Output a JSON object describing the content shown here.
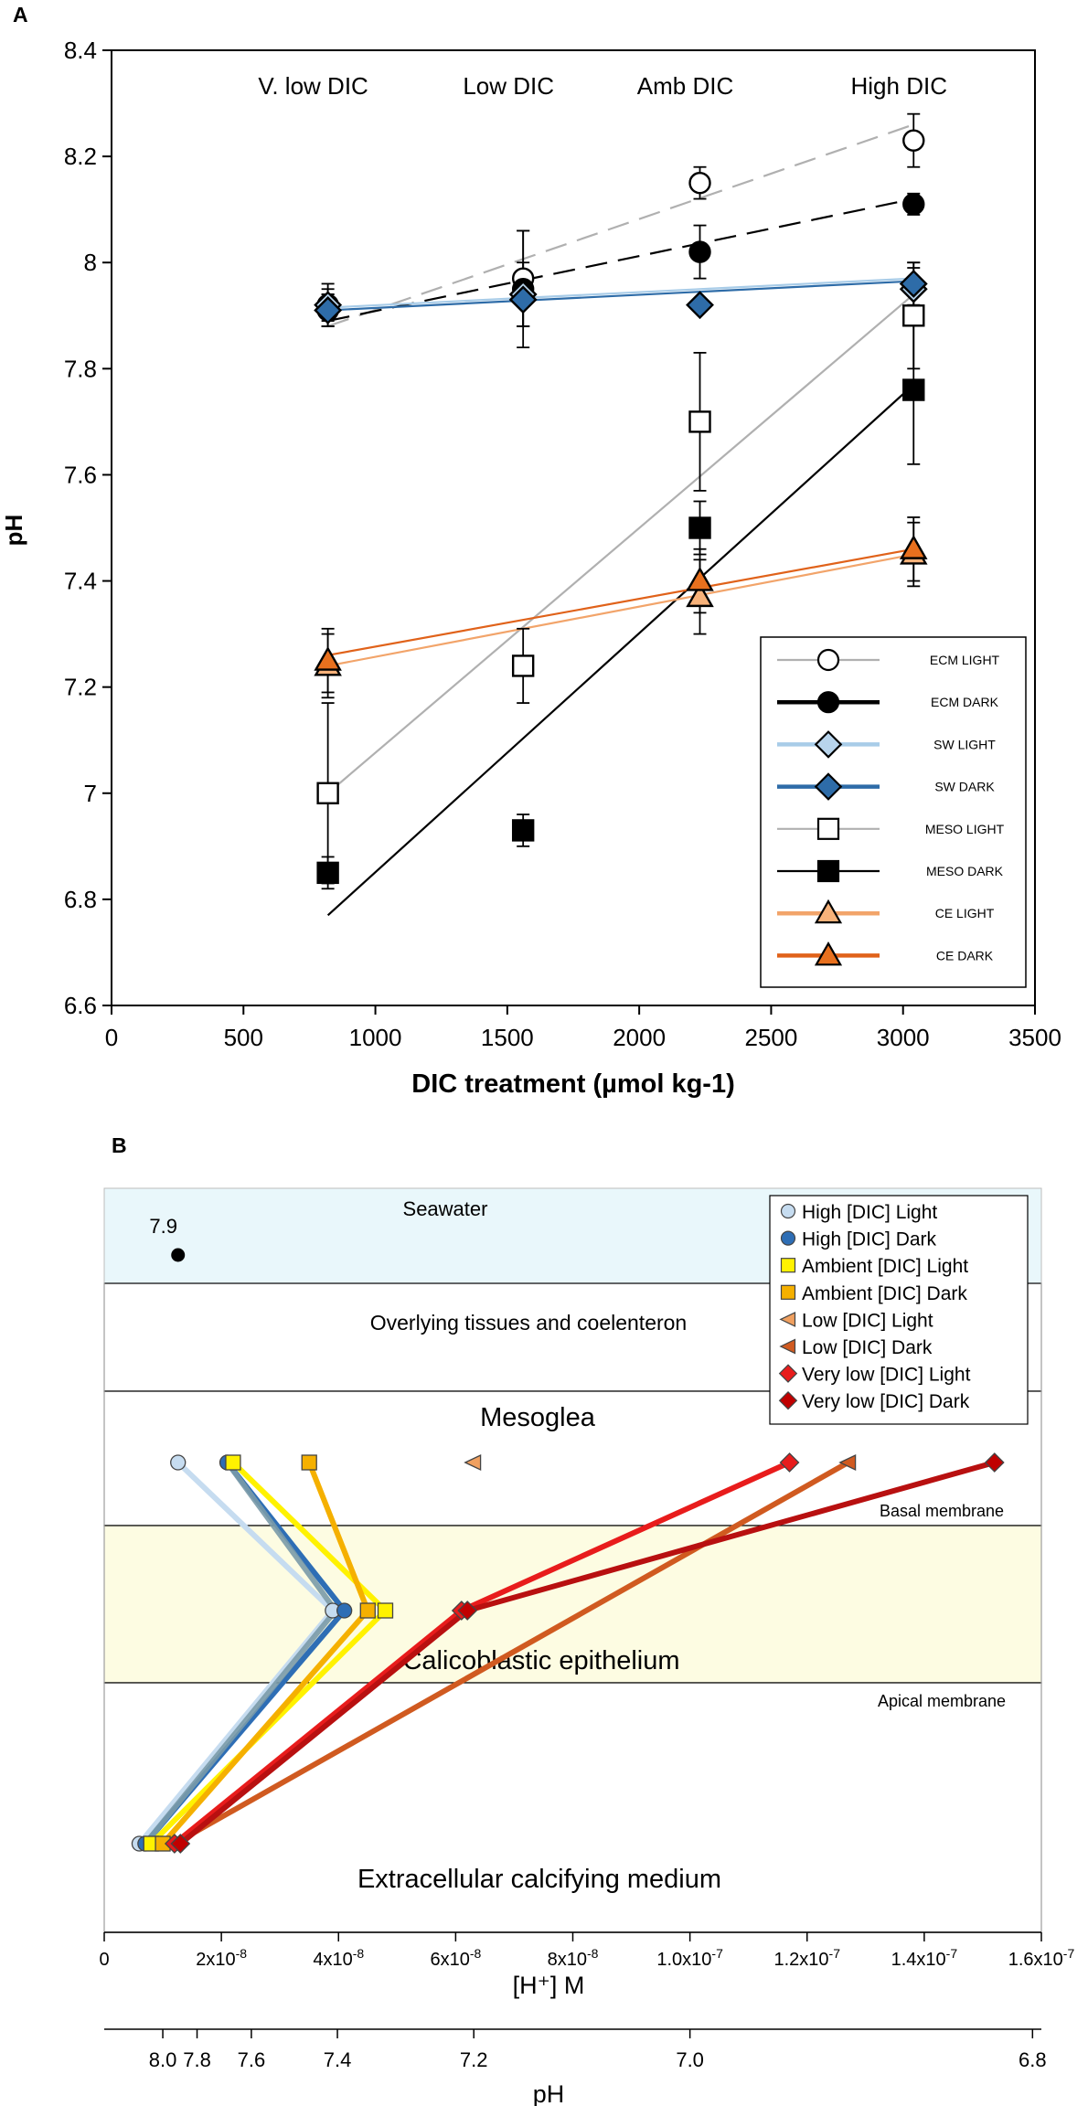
{
  "chart_data": [
    {
      "panel": "A",
      "type": "scatter",
      "xlabel": "DIC treatment (µmol kg-1)",
      "ylabel": "pH",
      "xlim": [
        0,
        3500
      ],
      "ylim": [
        6.6,
        8.4
      ],
      "xticks": [
        0,
        500,
        1000,
        1500,
        2000,
        2500,
        3000,
        3500
      ],
      "yticks": [
        6.6,
        6.8,
        7,
        7.2,
        7.4,
        7.6,
        7.8,
        8,
        8.2,
        8.4
      ],
      "ytick_labels": [
        "6.6",
        "6.8",
        "7",
        "7.2",
        "7.4",
        "7.6",
        "7.8",
        "8",
        "8.2",
        "8.4"
      ],
      "categories": [
        "V. low DIC",
        "Low DIC",
        "Amb DIC",
        "High DIC"
      ],
      "category_x": [
        820,
        1560,
        2230,
        3040
      ],
      "series": [
        {
          "name": "ECM LIGHT",
          "marker": "circle",
          "fill": "#ffffff",
          "stroke": "#000000",
          "line": "#b0b0b0",
          "dash": true,
          "x": [
            820,
            1560,
            2230,
            3040
          ],
          "y": [
            7.91,
            7.97,
            8.15,
            8.23
          ],
          "err": [
            0.03,
            0.09,
            0.03,
            0.05
          ],
          "fit": [
            [
              820,
              7.88
            ],
            [
              3040,
              8.26
            ]
          ]
        },
        {
          "name": "ECM DARK",
          "marker": "circle",
          "fill": "#000000",
          "stroke": "#000000",
          "line": "#000000",
          "dash": true,
          "x": [
            820,
            1560,
            2230,
            3040
          ],
          "y": [
            7.92,
            7.95,
            8.02,
            8.11
          ],
          "err": [
            0.04,
            0.11,
            0.05,
            0.02
          ],
          "fit": [
            [
              820,
              7.89
            ],
            [
              3040,
              8.12
            ]
          ]
        },
        {
          "name": "SW LIGHT",
          "marker": "diamond",
          "fill": "#b8d4ec",
          "stroke": "#000000",
          "line": "#a8cce8",
          "dash": false,
          "x": [
            820,
            1560,
            3040
          ],
          "y": [
            7.92,
            7.94,
            7.95
          ],
          "err": [
            0.03,
            0.06,
            0.04
          ],
          "fit": [
            [
              820,
              7.915
            ],
            [
              3040,
              7.97
            ]
          ]
        },
        {
          "name": "SW DARK",
          "marker": "diamond",
          "fill": "#2e6ca8",
          "stroke": "#000000",
          "line": "#2e6ca8",
          "dash": false,
          "x": [
            820,
            1560,
            2230,
            3040
          ],
          "y": [
            7.91,
            7.93,
            7.92,
            7.96
          ],
          "err": [
            0.03,
            0.05,
            0.01,
            0.04
          ],
          "fit": [
            [
              820,
              7.91
            ],
            [
              3040,
              7.965
            ]
          ]
        },
        {
          "name": "MESO LIGHT",
          "marker": "square",
          "fill": "#ffffff",
          "stroke": "#000000",
          "line": "#b0b0b0",
          "dash": false,
          "x": [
            820,
            1560,
            2230,
            3040
          ],
          "y": [
            7.0,
            7.24,
            7.7,
            7.9
          ],
          "err": [
            0.17,
            0.07,
            0.13,
            0.1
          ],
          "fit": [
            [
              820,
              7.0
            ],
            [
              3040,
              7.94
            ]
          ]
        },
        {
          "name": "MESO DARK",
          "marker": "square",
          "fill": "#000000",
          "stroke": "#000000",
          "line": "#000000",
          "dash": false,
          "x": [
            820,
            1560,
            2230,
            3040
          ],
          "y": [
            6.85,
            6.93,
            7.5,
            7.76
          ],
          "err": [
            0.03,
            0.03,
            0.05,
            0.14
          ],
          "fit": [
            [
              820,
              6.77
            ],
            [
              3040,
              7.77
            ]
          ]
        },
        {
          "name": "CE LIGHT",
          "marker": "triangle",
          "fill": "#f7b27a",
          "stroke": "#000000",
          "line": "#f2a46a",
          "dash": false,
          "x": [
            820,
            2230,
            3040
          ],
          "y": [
            7.24,
            7.37,
            7.45
          ],
          "err": [
            0.06,
            0.07,
            0.06
          ],
          "fit": [
            [
              820,
              7.24
            ],
            [
              3040,
              7.45
            ]
          ]
        },
        {
          "name": "CE DARK",
          "marker": "triangle",
          "fill": "#e8701e",
          "stroke": "#000000",
          "line": "#e0621a",
          "dash": false,
          "x": [
            820,
            2230,
            3040
          ],
          "y": [
            7.25,
            7.4,
            7.46
          ],
          "err": [
            0.06,
            0.06,
            0.06
          ],
          "fit": [
            [
              820,
              7.26
            ],
            [
              3040,
              7.46
            ]
          ]
        }
      ]
    },
    {
      "panel": "B",
      "type": "line",
      "xlabel": "[H⁺] M",
      "secondary_xlabel": "pH",
      "xlim": [
        0,
        1.6e-07
      ],
      "xticks": [
        0,
        2e-08,
        4e-08,
        6e-08,
        8e-08,
        1e-07,
        1.2e-07,
        1.4e-07,
        1.6e-07
      ],
      "xtick_labels": [
        {
          "mant": "0",
          "exp": ""
        },
        {
          "mant": "2x10",
          "exp": "-8"
        },
        {
          "mant": "4x10",
          "exp": "-8"
        },
        {
          "mant": "6x10",
          "exp": "-8"
        },
        {
          "mant": "8x10",
          "exp": "-8"
        },
        {
          "mant": "1.0x10",
          "exp": "-7"
        },
        {
          "mant": "1.2x10",
          "exp": "-7"
        },
        {
          "mant": "1.4x10",
          "exp": "-7"
        },
        {
          "mant": "1.6x10",
          "exp": "-7"
        }
      ],
      "ph_ticks": [
        8.0,
        7.8,
        7.6,
        7.4,
        7.2,
        7.0,
        6.8
      ],
      "ph_tick_labels": [
        "8.0",
        "7.8",
        "7.6",
        "7.4",
        "7.2",
        "7.0",
        "6.8"
      ],
      "seawater_point": {
        "label": "7.9",
        "h": 1.26e-08
      },
      "layers": [
        "Seawater",
        "Overlying tissues and coelenteron",
        "Mesoglea",
        "Calicoblastic epithelium",
        "Extracellular calcifying medium"
      ],
      "membranes": [
        "Basal membrane",
        "Apical membrane"
      ],
      "levels": [
        "Mesoglea",
        "Calicoblastic epithelium",
        "Extracellular calcifying medium"
      ],
      "series": [
        {
          "name": "High [DIC] Light",
          "marker": "circle",
          "fill": "#c6dcf0",
          "line": "#c6dcf0",
          "h": [
            1.26e-08,
            3.9e-08,
            6e-09
          ]
        },
        {
          "name": "High [DIC] Dark",
          "marker": "circle",
          "fill": "#2e6eb5",
          "line": "#2e6eb5",
          "h": [
            2.1e-08,
            4.1e-08,
            7e-09
          ]
        },
        {
          "name": "Ambient [DIC] Light",
          "marker": "square",
          "fill": "#fff200",
          "line": "#fff200",
          "h": [
            2.2e-08,
            4.8e-08,
            8e-09
          ]
        },
        {
          "name": "Ambient [DIC] Dark",
          "marker": "square",
          "fill": "#f5b000",
          "line": "#f5b000",
          "h": [
            3.5e-08,
            4.5e-08,
            1e-08
          ]
        },
        {
          "name": "Low [DIC] Light",
          "marker": "triangle-left",
          "fill": "#f0a060",
          "line": "#f0a060",
          "h": [
            6.3e-08,
            null,
            null
          ]
        },
        {
          "name": "Low [DIC] Dark",
          "marker": "triangle-left",
          "fill": "#d05a20",
          "line": "#d05a20",
          "h": [
            1.27e-07,
            null,
            1.2e-08
          ]
        },
        {
          "name": "Very low [DIC] Light",
          "marker": "diamond",
          "fill": "#e81c1c",
          "line": "#e81c1c",
          "h": [
            1.17e-07,
            6.1e-08,
            1.2e-08
          ]
        },
        {
          "name": "Very low [DIC] Dark",
          "marker": "diamond",
          "fill": "#c00000",
          "line": "#b81010",
          "h": [
            1.52e-07,
            6.2e-08,
            1.3e-08
          ]
        }
      ],
      "blend_line": {
        "color": "#7a9aa8",
        "h": [
          2.1e-08,
          3.95e-08,
          7e-09
        ]
      }
    }
  ],
  "panel_labels": {
    "a": "A",
    "b": "B"
  },
  "legend_a_title": "",
  "legend_b_title": ""
}
